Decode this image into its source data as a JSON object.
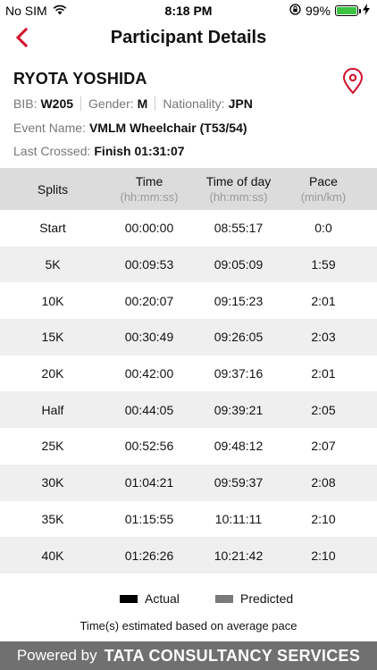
{
  "status_bar": {
    "carrier": "No SIM",
    "time": "8:18 PM",
    "battery_percent": "99%",
    "battery_level": 0.99,
    "icons": [
      "wifi-icon",
      "orientation-lock-icon",
      "battery-icon",
      "charging-bolt-icon"
    ]
  },
  "nav": {
    "title": "Participant Details",
    "back_icon": "chevron-left-icon",
    "accent_color": "#d0102a"
  },
  "participant": {
    "name": "RYOTA YOSHIDA",
    "bib_label": "BIB:",
    "bib": "W205",
    "gender_label": "Gender:",
    "gender": "M",
    "nationality_label": "Nationality:",
    "nationality": "JPN",
    "event_label": "Event Name:",
    "event": "VMLM Wheelchair (T53/54)",
    "last_crossed_label": "Last Crossed:",
    "last_crossed": "Finish 01:31:07",
    "map_icon": "location-pin-icon"
  },
  "table": {
    "headers": [
      {
        "label": "Splits",
        "sub": ""
      },
      {
        "label": "Time",
        "sub": "(hh:mm:ss)"
      },
      {
        "label": "Time of day",
        "sub": "(hh:mm:ss)"
      },
      {
        "label": "Pace",
        "sub": "(min/km)"
      }
    ],
    "rows": [
      [
        "Start",
        "00:00:00",
        "08:55:17",
        "0:0"
      ],
      [
        "5K",
        "00:09:53",
        "09:05:09",
        "1:59"
      ],
      [
        "10K",
        "00:20:07",
        "09:15:23",
        "2:01"
      ],
      [
        "15K",
        "00:30:49",
        "09:26:05",
        "2:03"
      ],
      [
        "20K",
        "00:42:00",
        "09:37:16",
        "2:01"
      ],
      [
        "Half",
        "00:44:05",
        "09:39:21",
        "2:05"
      ],
      [
        "25K",
        "00:52:56",
        "09:48:12",
        "2:07"
      ],
      [
        "30K",
        "01:04:21",
        "09:59:37",
        "2:08"
      ],
      [
        "35K",
        "01:15:55",
        "10:11:11",
        "2:10"
      ],
      [
        "40K",
        "01:26:26",
        "10:21:42",
        "2:10"
      ]
    ]
  },
  "legend": {
    "actual_label": "Actual",
    "actual_color": "#000000",
    "predicted_label": "Predicted",
    "predicted_color": "#7a7a7a"
  },
  "note": "Time(s) estimated based on average pace",
  "footer": {
    "powered": "Powered by",
    "brand": "TATA CONSULTANCY SERVICES"
  }
}
